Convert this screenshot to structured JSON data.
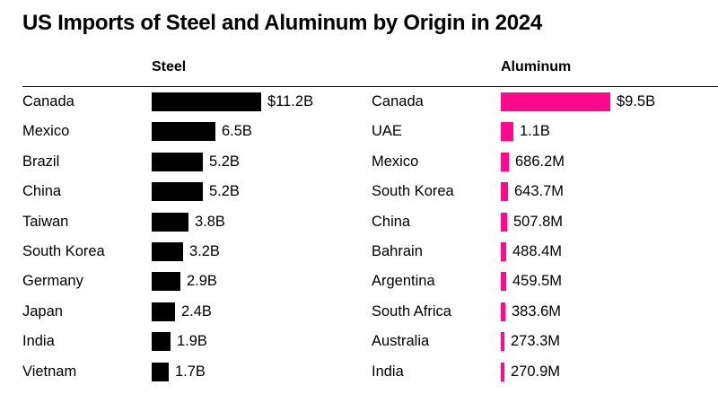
{
  "title": "US Imports of Steel and Aluminum by Origin in 2024",
  "chart_data": [
    {
      "type": "bar",
      "orientation": "horizontal",
      "title": "Steel",
      "unit": "USD",
      "color": "#000000",
      "categories": [
        "Canada",
        "Mexico",
        "Brazil",
        "China",
        "Taiwan",
        "South Korea",
        "Germany",
        "Japan",
        "India",
        "Vietnam"
      ],
      "values": [
        11.2,
        6.5,
        5.2,
        5.2,
        3.8,
        3.2,
        2.9,
        2.4,
        1.9,
        1.7
      ],
      "value_units": "billions of US dollars",
      "labels": [
        "$11.2B",
        "6.5B",
        "5.2B",
        "5.2B",
        "3.8B",
        "3.2B",
        "2.9B",
        "2.4B",
        "1.9B",
        "1.7B"
      ]
    },
    {
      "type": "bar",
      "orientation": "horizontal",
      "title": "Aluminum",
      "unit": "USD",
      "color": "#ff0a8c",
      "categories": [
        "Canada",
        "UAE",
        "Mexico",
        "South Korea",
        "China",
        "Bahrain",
        "Argentina",
        "South Africa",
        "Australia",
        "India"
      ],
      "values": [
        9.5,
        1.1,
        0.6862,
        0.6437,
        0.5078,
        0.4884,
        0.4595,
        0.3836,
        0.2733,
        0.2709
      ],
      "value_units": "billions of US dollars",
      "labels": [
        "$9.5B",
        "1.1B",
        "686.2M",
        "643.7M",
        "507.8M",
        "488.4M",
        "459.5M",
        "383.6M",
        "273.3M",
        "270.9M"
      ]
    }
  ]
}
